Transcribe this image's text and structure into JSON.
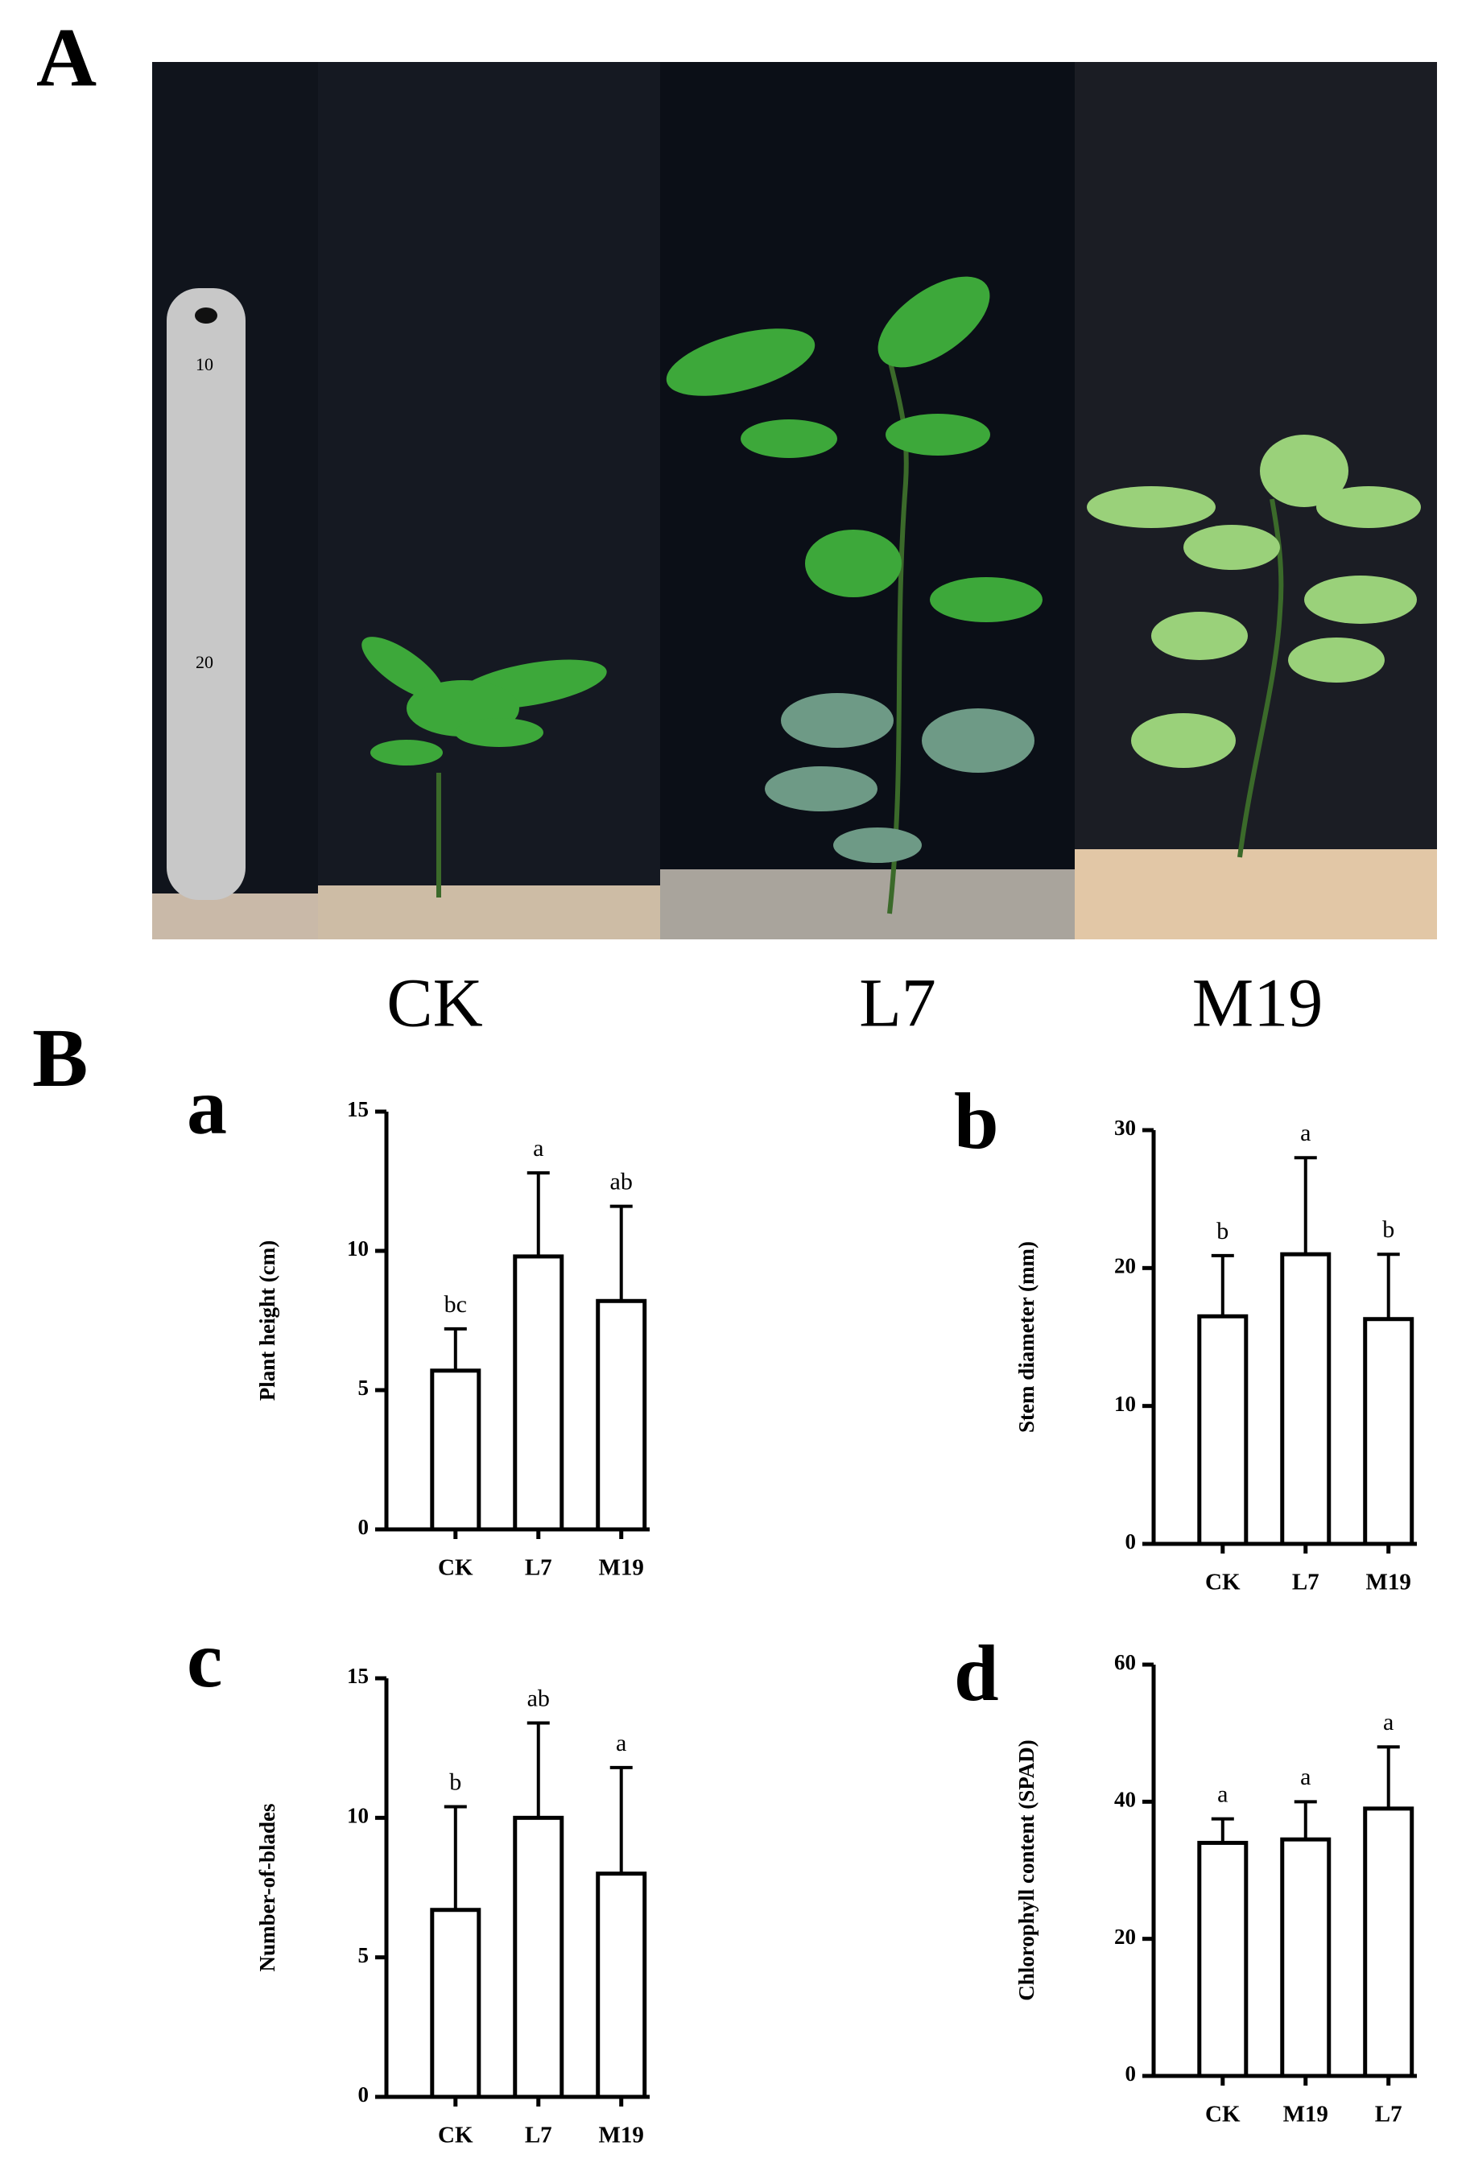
{
  "figure": {
    "panel_a_label": "A",
    "panel_b_label": "B",
    "photo_labels": [
      "CK",
      "L7",
      "M19"
    ]
  },
  "chart_data": [
    {
      "type": "bar",
      "panel_label": "a",
      "ylabel": "Plant height (cm)",
      "categories": [
        "CK",
        "L7",
        "M19"
      ],
      "values": [
        5.7,
        9.8,
        8.2
      ],
      "errors": [
        1.5,
        3.0,
        3.4
      ],
      "annotations": [
        "bc",
        "a",
        "ab"
      ],
      "ylim": [
        0,
        15
      ],
      "yticks": [
        0,
        5,
        10,
        15
      ],
      "color": "#ffffff"
    },
    {
      "type": "bar",
      "panel_label": "b",
      "ylabel": "Stem diameter (mm)",
      "categories": [
        "CK",
        "L7",
        "M19"
      ],
      "values": [
        16.5,
        21,
        16.3
      ],
      "errors": [
        4.4,
        7,
        4.7
      ],
      "annotations": [
        "b",
        "a",
        "b"
      ],
      "ylim": [
        0,
        30
      ],
      "yticks": [
        0,
        10,
        20,
        30
      ],
      "color": "#ffffff"
    },
    {
      "type": "bar",
      "panel_label": "c",
      "ylabel": "Number-of-blades",
      "categories": [
        "CK",
        "L7",
        "M19"
      ],
      "values": [
        6.7,
        10.0,
        8.0
      ],
      "errors": [
        3.7,
        3.4,
        3.8
      ],
      "annotations": [
        "b",
        "ab",
        "a"
      ],
      "ylim": [
        0,
        15
      ],
      "yticks": [
        0,
        5,
        10,
        15
      ],
      "color": "#ffffff"
    },
    {
      "type": "bar",
      "panel_label": "d",
      "ylabel": "Chlorophyll content (SPAD)",
      "categories": [
        "CK",
        "M19",
        "L7"
      ],
      "values": [
        34,
        34.5,
        39
      ],
      "errors": [
        3.5,
        5.5,
        9
      ],
      "annotations": [
        "a",
        "a",
        "a"
      ],
      "ylim": [
        0,
        60
      ],
      "yticks": [
        0,
        20,
        40,
        60
      ],
      "color": "#ffffff"
    }
  ]
}
